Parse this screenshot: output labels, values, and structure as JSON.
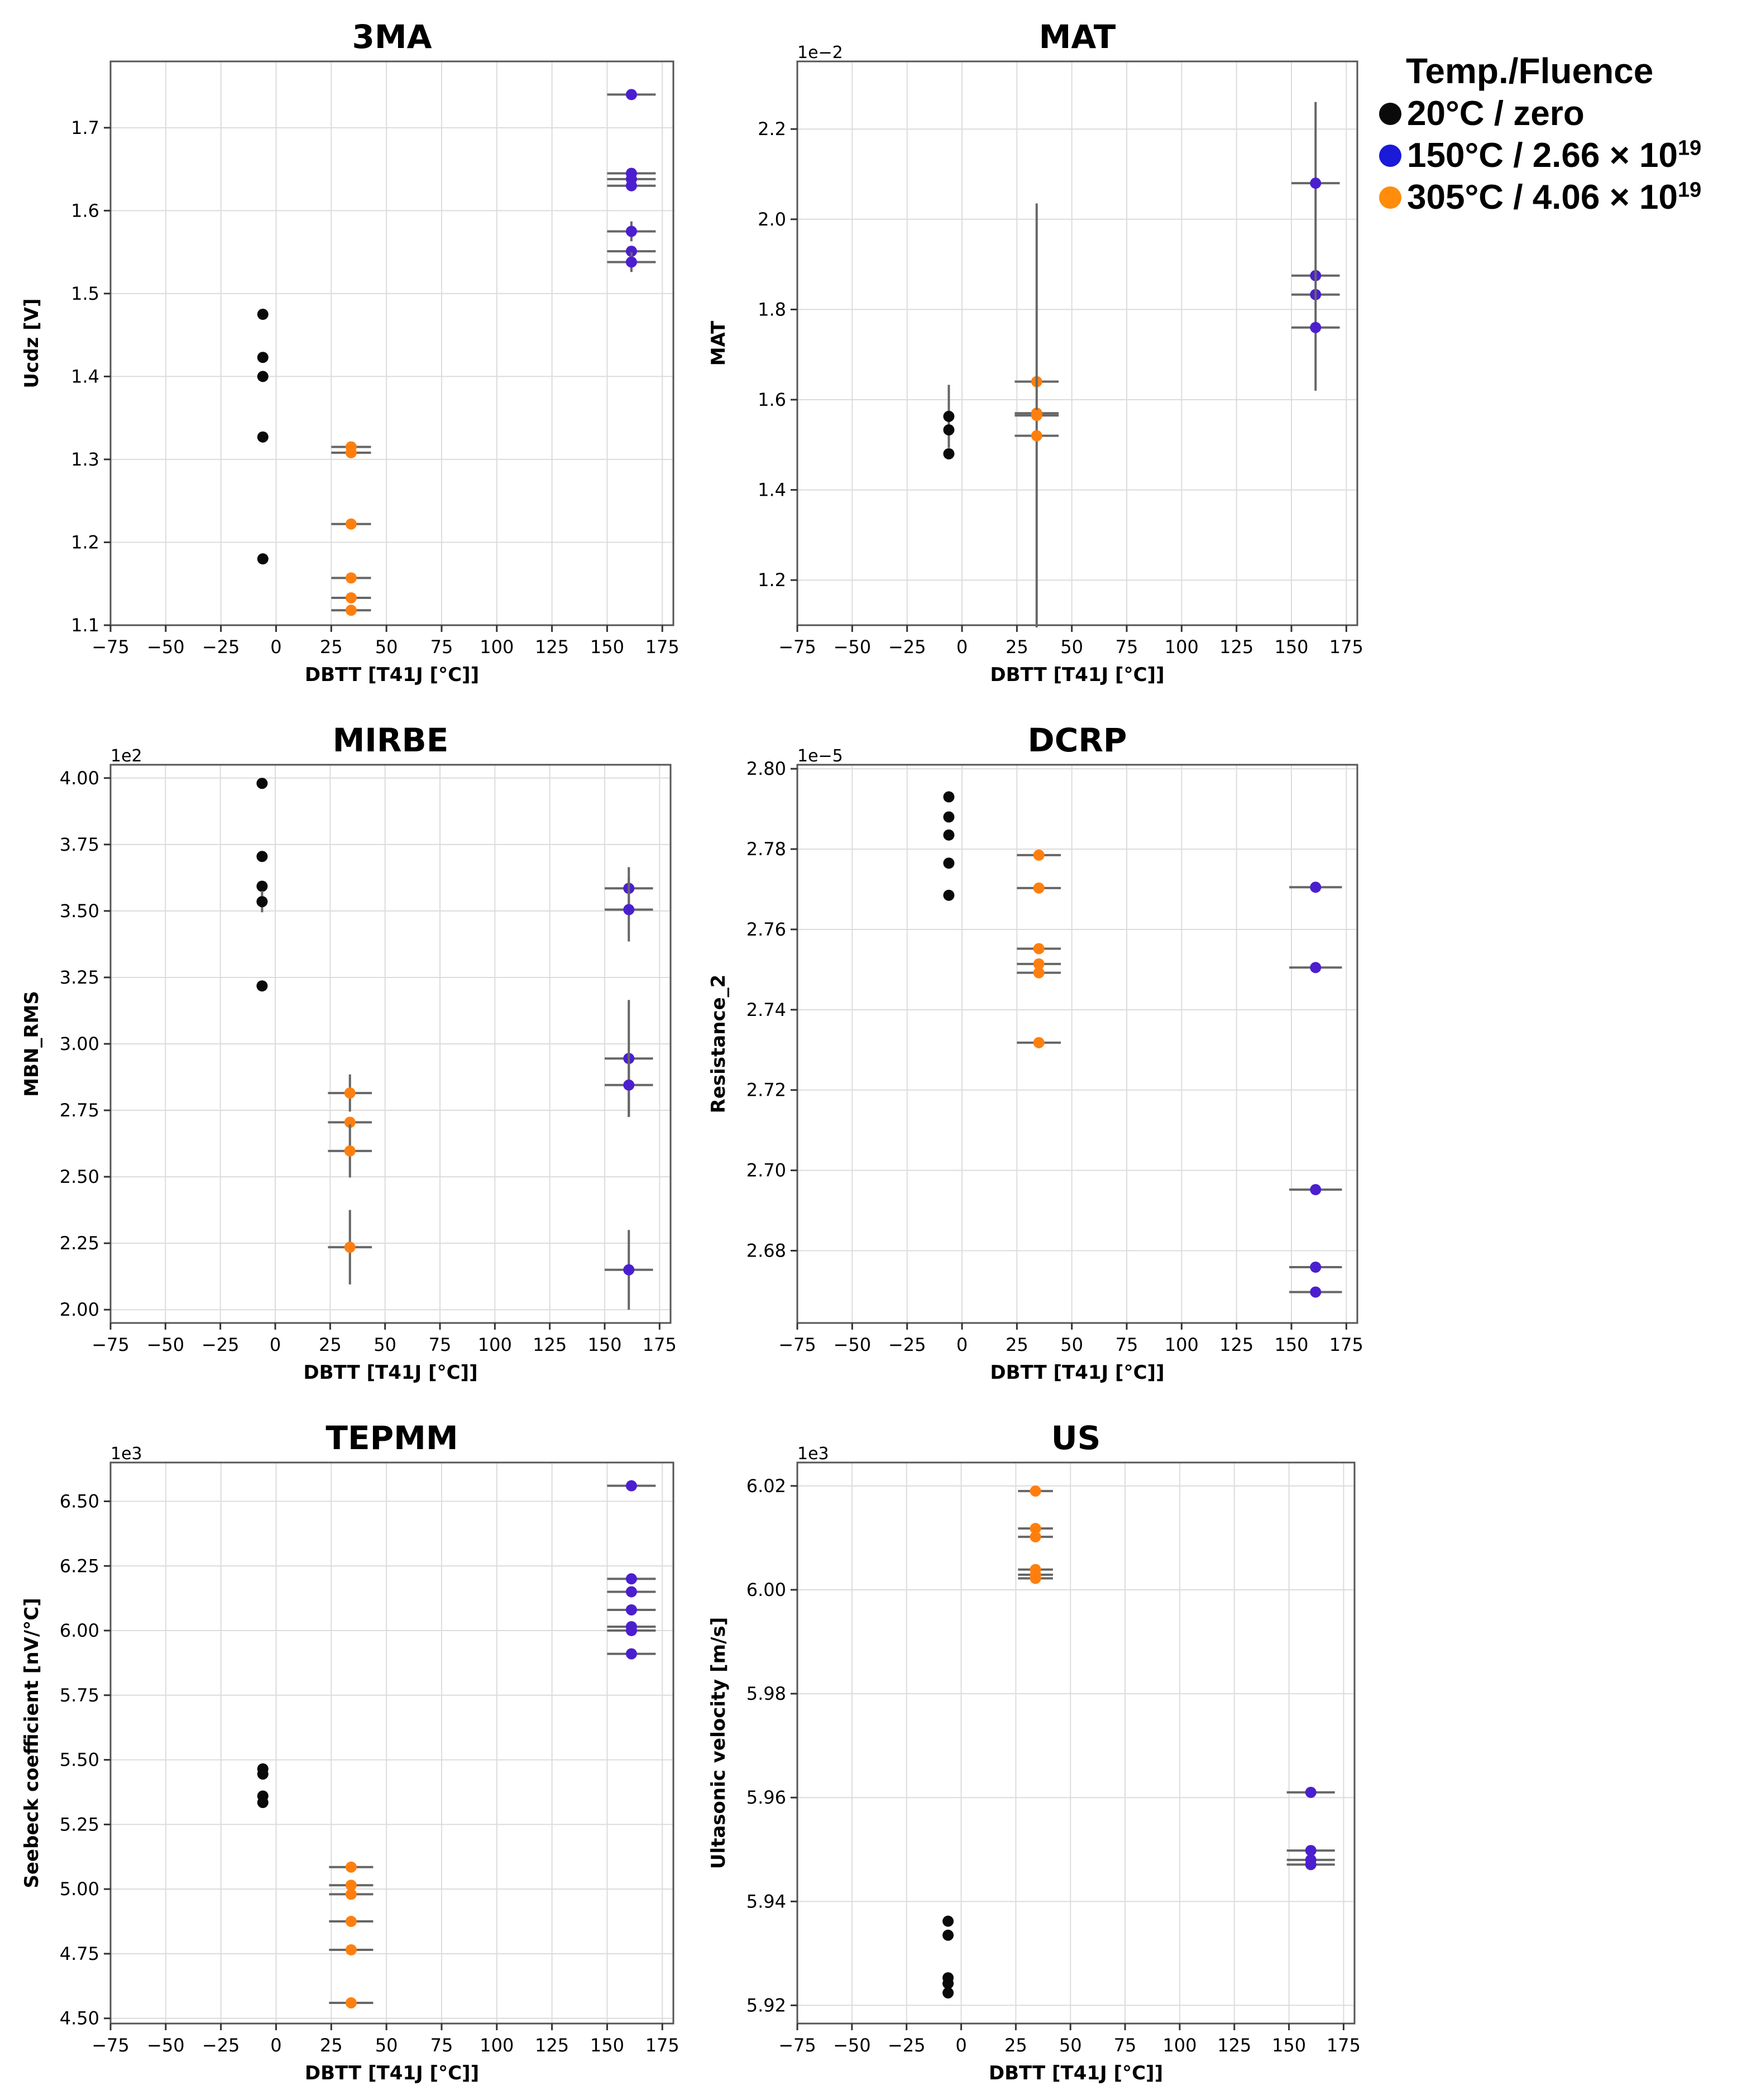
{
  "legend": {
    "title": "Temp./Fluence",
    "entries": [
      {
        "label": "20°C / zero",
        "exp": "",
        "color": "#0a0a0a"
      },
      {
        "label": "150°C / 2.66 × 10",
        "exp": "19",
        "color": "#1a1ad8"
      },
      {
        "label": "305°C / 4.06 × 10",
        "exp": "19",
        "color": "#ff8c0a"
      }
    ]
  },
  "chart_data": [
    {
      "type": "scatter",
      "title": "3MA",
      "xlabel": "DBTT [T41J [°C]]",
      "ylabel": "Ucdz [V]",
      "multiplier": "",
      "xlim": [
        -75,
        180
      ],
      "ylim": [
        1.1,
        1.78
      ],
      "yticks": [
        "1.1",
        "1.2",
        "1.3",
        "1.4",
        "1.5",
        "1.6",
        "1.7"
      ],
      "xticks": [
        "−75",
        "−50",
        "−25",
        "0",
        "25",
        "50",
        "75",
        "100",
        "125",
        "150",
        "175"
      ],
      "series": [
        {
          "name": "20°C / zero",
          "color": "#0a0a0a",
          "x": -6,
          "xerr": 0,
          "y": [
            1.475,
            1.423,
            1.4,
            1.327,
            1.18
          ],
          "yerr": [
            0,
            0,
            0,
            0,
            0
          ]
        },
        {
          "name": "305°C / 4.06 × 10^19",
          "color": "#ff7f0e",
          "x": 34,
          "xerr": 9,
          "y": [
            1.315,
            1.308,
            1.222,
            1.157,
            1.133,
            1.118
          ],
          "yerr": [
            0,
            0,
            0,
            0,
            0,
            0
          ]
        },
        {
          "name": "150°C / 2.66 × 10^19",
          "color": "#4b1fcf",
          "x": 161,
          "xerr": 11,
          "y": [
            1.74,
            1.645,
            1.638,
            1.63,
            1.575,
            1.551,
            1.538
          ],
          "yerr": [
            0,
            0,
            0,
            0,
            0.012,
            0,
            0.012
          ]
        }
      ]
    },
    {
      "type": "scatter",
      "title": "MAT",
      "xlabel": "DBTT [T41J [°C]]",
      "ylabel": "MAT",
      "multiplier": "1e−2",
      "xlim": [
        -75,
        180
      ],
      "ylim": [
        1.1,
        2.35
      ],
      "yticks": [
        "1.2",
        "1.4",
        "1.6",
        "1.8",
        "2.0",
        "2.2"
      ],
      "xticks": [
        "−75",
        "−50",
        "−25",
        "0",
        "25",
        "50",
        "75",
        "100",
        "125",
        "150",
        "175"
      ],
      "series": [
        {
          "name": "20°C / zero",
          "color": "#0a0a0a",
          "x": -6,
          "xerr": 0,
          "y": [
            1.563,
            1.533,
            1.48
          ],
          "yerr": [
            0.07,
            0,
            0
          ]
        },
        {
          "name": "305°C / 4.06 × 10^19",
          "color": "#ff7f0e",
          "x": 34,
          "xerr": 10,
          "y": [
            1.64,
            1.57,
            1.565,
            1.52
          ],
          "yerr": [
            0,
            0,
            0.47,
            0
          ]
        },
        {
          "name": "150°C / 2.66 × 10^19",
          "color": "#4b1fcf",
          "x": 161,
          "xerr": 11,
          "y": [
            2.08,
            1.875,
            1.833,
            1.76
          ],
          "yerr": [
            0.18,
            0,
            0,
            0.14
          ]
        }
      ]
    },
    {
      "type": "scatter",
      "title": "MIRBE",
      "xlabel": "DBTT [T41J [°C]]",
      "ylabel": "MBN_RMS",
      "multiplier": "1e2",
      "xlim": [
        -75,
        180
      ],
      "ylim": [
        1.95,
        4.05
      ],
      "yticks": [
        "2.00",
        "2.25",
        "2.50",
        "2.75",
        "3.00",
        "3.25",
        "3.50",
        "3.75",
        "4.00"
      ],
      "xticks": [
        "−75",
        "−50",
        "−25",
        "0",
        "25",
        "50",
        "75",
        "100",
        "125",
        "150",
        "175"
      ],
      "series": [
        {
          "name": "20°C / zero",
          "color": "#0a0a0a",
          "x": -6,
          "xerr": 0,
          "y": [
            3.98,
            3.705,
            3.593,
            3.535,
            3.218
          ],
          "yerr": [
            0,
            0,
            0,
            0.04,
            0
          ]
        },
        {
          "name": "305°C / 4.06 × 10^19",
          "color": "#ff7f0e",
          "x": 34,
          "xerr": 10,
          "y": [
            2.815,
            2.705,
            2.597,
            2.235
          ],
          "yerr": [
            0.07,
            0,
            0.1,
            0.14
          ]
        },
        {
          "name": "150°C / 2.66 × 10^19",
          "color": "#4b1fcf",
          "x": 161,
          "xerr": 11,
          "y": [
            3.585,
            3.505,
            2.945,
            2.845,
            2.15
          ],
          "yerr": [
            0.08,
            0.12,
            0.22,
            0.12,
            0.15
          ]
        }
      ]
    },
    {
      "type": "scatter",
      "title": "DCRP",
      "xlabel": "DBTT [T41J [°C]]",
      "ylabel": "Resistance_2",
      "multiplier": "1e−5",
      "xlim": [
        -75,
        180
      ],
      "ylim": [
        2.662,
        2.801
      ],
      "yticks": [
        "2.68",
        "2.70",
        "2.72",
        "2.74",
        "2.76",
        "2.78",
        "2.80"
      ],
      "xticks": [
        "−75",
        "−50",
        "−25",
        "0",
        "25",
        "50",
        "75",
        "100",
        "125",
        "150",
        "175"
      ],
      "series": [
        {
          "name": "20°C / zero",
          "color": "#0a0a0a",
          "x": -6,
          "xerr": 0,
          "y": [
            2.793,
            2.788,
            2.7835,
            2.7765,
            2.7685
          ],
          "yerr": [
            0,
            0,
            0,
            0,
            0
          ]
        },
        {
          "name": "305°C / 4.06 × 10^19",
          "color": "#ff7f0e",
          "x": 35,
          "xerr": 10,
          "y": [
            2.7785,
            2.7703,
            2.7552,
            2.7514,
            2.7492,
            2.7318
          ],
          "yerr": [
            0,
            0,
            0,
            0,
            0,
            0
          ]
        },
        {
          "name": "150°C / 2.66 × 10^19",
          "color": "#4b1fcf",
          "x": 161,
          "xerr": 12,
          "y": [
            2.7705,
            2.7505,
            2.6952,
            2.6759,
            2.6697
          ],
          "yerr": [
            0,
            0,
            0,
            0,
            0
          ]
        }
      ]
    },
    {
      "type": "scatter",
      "title": "TEPMM",
      "xlabel": "DBTT [T41J [°C]]",
      "ylabel": "Seebeck coefficient [nV/°C]",
      "multiplier": "1e3",
      "xlim": [
        -75,
        180
      ],
      "ylim": [
        4.48,
        6.65
      ],
      "yticks": [
        "4.50",
        "4.75",
        "5.00",
        "5.25",
        "5.50",
        "5.75",
        "6.00",
        "6.25",
        "6.50"
      ],
      "xticks": [
        "−75",
        "−50",
        "−25",
        "0",
        "25",
        "50",
        "75",
        "100",
        "125",
        "150",
        "175"
      ],
      "series": [
        {
          "name": "20°C / zero",
          "color": "#0a0a0a",
          "x": -6,
          "xerr": 0,
          "y": [
            5.465,
            5.445,
            5.36,
            5.335
          ],
          "yerr": [
            0,
            0,
            0,
            0
          ]
        },
        {
          "name": "305°C / 4.06 × 10^19",
          "color": "#ff7f0e",
          "x": 34,
          "xerr": 10,
          "y": [
            5.085,
            5.015,
            4.98,
            4.875,
            4.765,
            4.56
          ],
          "yerr": [
            0,
            0,
            0,
            0,
            0,
            0
          ]
        },
        {
          "name": "150°C / 2.66 × 10^19",
          "color": "#4b1fcf",
          "x": 161,
          "xerr": 11,
          "y": [
            6.56,
            6.2,
            6.15,
            6.08,
            6.015,
            6.0,
            5.91
          ],
          "yerr": [
            0,
            0,
            0,
            0,
            0,
            0,
            0
          ]
        }
      ]
    },
    {
      "type": "scatter",
      "title": "US",
      "xlabel": "DBTT [T41J [°C]]",
      "ylabel": "Ultasonic velocity [m/s]",
      "multiplier": "1e3",
      "xlim": [
        -75,
        180
      ],
      "ylim": [
        5.9165,
        6.0245
      ],
      "yticks": [
        "5.92",
        "5.94",
        "5.96",
        "5.98",
        "6.00",
        "6.02"
      ],
      "xticks": [
        "−75",
        "−50",
        "−25",
        "0",
        "25",
        "50",
        "75",
        "100",
        "125",
        "150",
        "175"
      ],
      "series": [
        {
          "name": "20°C / zero",
          "color": "#0a0a0a",
          "x": -6,
          "xerr": 0,
          "y": [
            5.9362,
            5.9335,
            5.9253,
            5.9242,
            5.9224
          ],
          "yerr": [
            0,
            0,
            0,
            0,
            0
          ]
        },
        {
          "name": "305°C / 4.06 × 10^19",
          "color": "#ff7f0e",
          "x": 34,
          "xerr": 8,
          "y": [
            6.019,
            6.0118,
            6.0102,
            6.0039,
            6.0029,
            6.0022
          ],
          "yerr": [
            0,
            0,
            0,
            0,
            0,
            0
          ]
        },
        {
          "name": "150°C / 2.66 × 10^19",
          "color": "#4b1fcf",
          "x": 160,
          "xerr": 11,
          "y": [
            5.961,
            5.9498,
            5.948,
            5.9471
          ],
          "yerr": [
            0,
            0,
            0,
            0
          ]
        }
      ]
    }
  ]
}
